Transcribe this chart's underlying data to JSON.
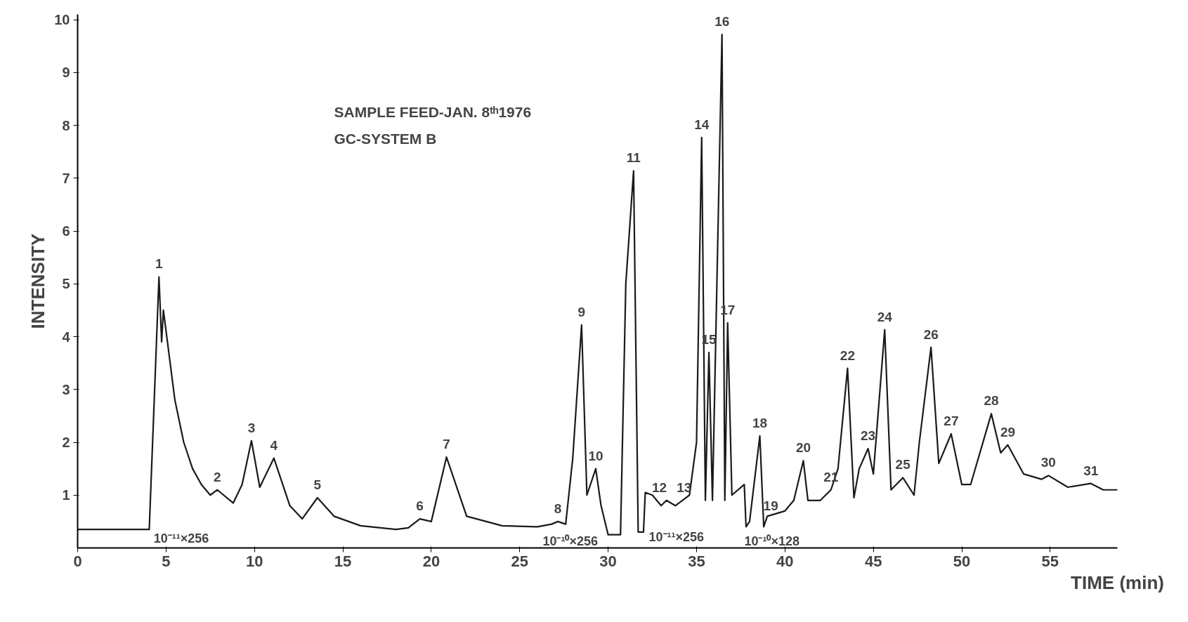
{
  "chart_data": {
    "type": "line",
    "xlabel": "TIME (min)",
    "ylabel": "INTENSITY",
    "xlim": [
      0,
      58.8
    ],
    "ylim": [
      0,
      10.1
    ],
    "xticks": [
      0,
      5,
      10,
      15,
      20,
      25,
      30,
      35,
      40,
      45,
      50,
      55
    ],
    "yticks": [
      1,
      2,
      3,
      4,
      5,
      6,
      7,
      8,
      9,
      10
    ],
    "grid": false,
    "marker": "none",
    "line_style": "solid",
    "x": [
      0,
      4,
      4.05,
      4.6,
      4.75,
      4.85,
      5.5,
      6,
      6.5,
      7,
      7.5,
      7.9,
      8.8,
      9.3,
      9.83,
      10.3,
      11.1,
      12,
      12.7,
      13.56,
      14.5,
      16,
      18,
      18.7,
      19.35,
      20,
      20.86,
      22,
      24,
      26,
      26.8,
      27.16,
      27.6,
      28,
      28.5,
      28.8,
      29.3,
      29.6,
      30,
      30.7,
      31,
      31.44,
      31.7,
      32,
      32.1,
      32.5,
      33,
      33.3,
      33.8,
      34.2,
      34.6,
      35,
      35.29,
      35.5,
      35.7,
      35.9,
      36.44,
      36.6,
      36.76,
      37,
      37.7,
      37.8,
      38,
      38.58,
      38.8,
      39,
      40,
      40.5,
      41.04,
      41.3,
      42,
      42.6,
      43,
      43.54,
      43.9,
      44.2,
      44.7,
      45,
      45.64,
      46,
      46.67,
      47.3,
      47.6,
      48.26,
      48.7,
      49.4,
      50,
      50.5,
      51.67,
      52.2,
      52.6,
      53.5,
      54.5,
      54.9,
      56,
      57.3,
      58,
      58.8
    ],
    "series": [
      {
        "color": "#1a1a1a",
        "values": [
          0.35,
          0.35,
          0.35,
          5.13,
          3.9,
          4.5,
          2.8,
          2.0,
          1.5,
          1.2,
          1.0,
          1.1,
          0.85,
          1.2,
          2.03,
          1.15,
          1.7,
          0.8,
          0.55,
          0.95,
          0.6,
          0.42,
          0.35,
          0.38,
          0.55,
          0.5,
          1.72,
          0.6,
          0.42,
          0.4,
          0.45,
          0.5,
          0.45,
          1.7,
          4.22,
          1.0,
          1.5,
          0.8,
          0.25,
          0.25,
          5.0,
          7.14,
          0.3,
          0.3,
          1.05,
          1.0,
          0.8,
          0.9,
          0.8,
          0.9,
          1.0,
          2.0,
          7.77,
          0.9,
          3.7,
          0.9,
          9.72,
          0.9,
          4.26,
          1.0,
          1.2,
          0.4,
          0.5,
          2.12,
          0.4,
          0.6,
          0.7,
          0.9,
          1.65,
          0.9,
          0.9,
          1.1,
          1.5,
          3.4,
          0.95,
          1.5,
          1.88,
          1.4,
          4.13,
          1.1,
          1.33,
          1.0,
          2.0,
          3.8,
          1.6,
          2.16,
          1.2,
          1.2,
          2.54,
          1.8,
          1.95,
          1.4,
          1.3,
          1.37,
          1.15,
          1.22,
          1.1,
          1.1
        ]
      }
    ],
    "annotations": [
      "SAMPLE FEED-JAN. 8ᵗʰ1976",
      "GC-SYSTEM B",
      {
        "text": "1",
        "x": 4.6,
        "y": 5.13
      },
      {
        "text": "2",
        "x": 7.9,
        "y": 1.1
      },
      {
        "text": "3",
        "x": 9.83,
        "y": 2.03
      },
      {
        "text": "4",
        "x": 11.1,
        "y": 1.7
      },
      {
        "text": "5",
        "x": 13.56,
        "y": 0.95
      },
      {
        "text": "6",
        "x": 19.35,
        "y": 0.55
      },
      {
        "text": "7",
        "x": 20.86,
        "y": 1.72
      },
      {
        "text": "8",
        "x": 27.16,
        "y": 0.5
      },
      {
        "text": "9",
        "x": 28.5,
        "y": 4.22
      },
      {
        "text": "10",
        "x": 29.3,
        "y": 1.5
      },
      {
        "text": "11",
        "x": 31.44,
        "y": 7.14
      },
      {
        "text": "12",
        "x": 32.9,
        "y": 0.9
      },
      {
        "text": "13",
        "x": 34.3,
        "y": 0.9
      },
      {
        "text": "14",
        "x": 35.29,
        "y": 7.77
      },
      {
        "text": "15",
        "x": 35.7,
        "y": 3.7
      },
      {
        "text": "16",
        "x": 36.44,
        "y": 9.72
      },
      {
        "text": "17",
        "x": 36.76,
        "y": 4.26
      },
      {
        "text": "18",
        "x": 38.58,
        "y": 2.12
      },
      {
        "text": "19",
        "x": 39.2,
        "y": 0.55
      },
      {
        "text": "20",
        "x": 41.04,
        "y": 1.65
      },
      {
        "text": "21",
        "x": 42.6,
        "y": 1.1
      },
      {
        "text": "22",
        "x": 43.54,
        "y": 3.4
      },
      {
        "text": "23",
        "x": 44.7,
        "y": 1.88
      },
      {
        "text": "24",
        "x": 45.64,
        "y": 4.13
      },
      {
        "text": "25",
        "x": 46.67,
        "y": 1.33
      },
      {
        "text": "26",
        "x": 48.26,
        "y": 3.8
      },
      {
        "text": "27",
        "x": 49.4,
        "y": 2.16
      },
      {
        "text": "28",
        "x": 51.67,
        "y": 2.54
      },
      {
        "text": "29",
        "x": 52.6,
        "y": 1.95
      },
      {
        "text": "30",
        "x": 54.9,
        "y": 1.37
      },
      {
        "text": "31",
        "x": 57.3,
        "y": 1.22
      },
      "10⁻¹¹×256",
      "10⁻¹⁰×256",
      "10⁻¹¹×256",
      "10⁻¹⁰×128"
    ]
  }
}
